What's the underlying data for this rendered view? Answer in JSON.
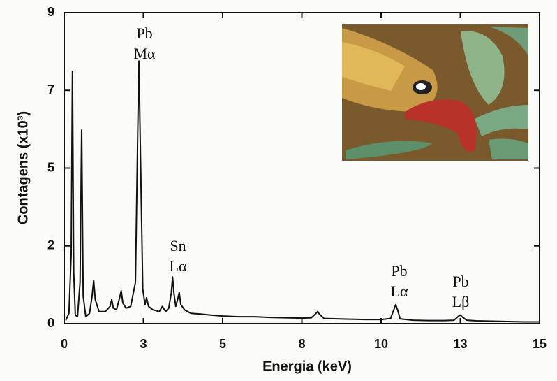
{
  "chart_data": {
    "type": "line",
    "x_label": "Energia (keV)",
    "y_label": "Contagens (x10³)",
    "color": "#111111",
    "xlim": [
      0,
      15
    ],
    "xticks": [
      0,
      {
        "value": 2.5,
        "label": "3"
      },
      5,
      {
        "value": 7.5,
        "label": "8"
      },
      10,
      {
        "value": 12.5,
        "label": "13"
      },
      15
    ],
    "ylim": [
      0,
      9
    ],
    "yticks": [
      0,
      {
        "value": 2.25,
        "label": "2"
      },
      {
        "value": 4.5,
        "label": "5"
      },
      {
        "value": 6.75,
        "label": "7"
      },
      9
    ],
    "annotations": [
      [
        "Pb",
        "Mα"
      ],
      [
        "Sn",
        "Lα"
      ],
      [
        "Pb",
        "Lα"
      ],
      [
        "Pb",
        "Lβ"
      ]
    ],
    "x": [
      0.05,
      0.15,
      0.22,
      0.26,
      0.3,
      0.35,
      0.42,
      0.5,
      0.55,
      0.6,
      0.68,
      0.8,
      0.88,
      0.93,
      0.98,
      1.1,
      1.3,
      1.45,
      1.5,
      1.55,
      1.65,
      1.75,
      1.8,
      1.85,
      1.95,
      2.1,
      2.25,
      2.32,
      2.36,
      2.4,
      2.48,
      2.55,
      2.6,
      2.66,
      2.8,
      3.0,
      3.1,
      3.2,
      3.3,
      3.38,
      3.42,
      3.46,
      3.52,
      3.58,
      3.63,
      3.68,
      3.8,
      4.0,
      4.3,
      4.6,
      5,
      5.5,
      6,
      6.5,
      7,
      7.5,
      7.8,
      7.95,
      8.0,
      8.05,
      8.2,
      8.6,
      9,
      9.5,
      10,
      10.3,
      10.4,
      10.46,
      10.52,
      10.6,
      11,
      11.5,
      12,
      12.3,
      12.45,
      12.5,
      12.55,
      12.7,
      13,
      13.5,
      14,
      14.5,
      15
    ],
    "values": [
      0.1,
      0.3,
      2,
      7.3,
      1.5,
      0.25,
      0.2,
      1.2,
      5.6,
      0.8,
      0.2,
      0.3,
      0.8,
      1.25,
      0.7,
      0.35,
      0.35,
      0.5,
      0.7,
      0.45,
      0.4,
      0.75,
      0.95,
      0.6,
      0.45,
      0.5,
      1.2,
      5.5,
      7.6,
      5.2,
      1.0,
      0.55,
      0.75,
      0.5,
      0.4,
      0.35,
      0.5,
      0.35,
      0.45,
      0.9,
      1.35,
      0.9,
      0.5,
      0.7,
      0.9,
      0.55,
      0.4,
      0.3,
      0.28,
      0.25,
      0.22,
      0.2,
      0.2,
      0.18,
      0.17,
      0.16,
      0.17,
      0.3,
      0.35,
      0.28,
      0.15,
      0.14,
      0.13,
      0.12,
      0.12,
      0.15,
      0.4,
      0.55,
      0.4,
      0.14,
      0.1,
      0.09,
      0.09,
      0.1,
      0.22,
      0.25,
      0.2,
      0.1,
      0.08,
      0.07,
      0.06,
      0.05,
      0.05
    ]
  }
}
